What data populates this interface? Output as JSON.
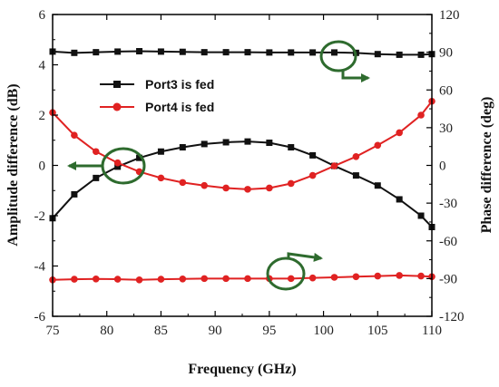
{
  "chart_data": {
    "type": "line",
    "xlabel": "Frequency (GHz)",
    "ylabel_left": "Amplitude difference (dB)",
    "ylabel_right": "Phase difference (deg)",
    "xlim": [
      75,
      110
    ],
    "ylim_left": [
      -6,
      6
    ],
    "ylim_right": [
      -120,
      120
    ],
    "x_ticks": [
      75,
      80,
      85,
      90,
      95,
      100,
      105,
      110
    ],
    "y_ticks_left": [
      -6,
      -4,
      -2,
      0,
      2,
      4,
      6
    ],
    "y_ticks_right": [
      -120,
      -90,
      -60,
      -30,
      0,
      30,
      60,
      90,
      120
    ],
    "grid": false,
    "legend_position": "upper-left",
    "colors": {
      "port3": "#111111",
      "port4": "#e02222",
      "annotation": "#2e6b2e"
    },
    "x": [
      75,
      77,
      79,
      81,
      83,
      85,
      87,
      89,
      91,
      93,
      95,
      97,
      99,
      101,
      103,
      105,
      107,
      109,
      110
    ],
    "series": [
      {
        "name": "Port3 is fed",
        "axis": "left",
        "marker": "square",
        "amplitude_values": [
          -2.1,
          -1.15,
          -0.5,
          -0.05,
          0.3,
          0.55,
          0.72,
          0.85,
          0.92,
          0.95,
          0.9,
          0.72,
          0.4,
          -0.02,
          -0.4,
          -0.8,
          -1.35,
          -2.0,
          -2.45
        ],
        "phase_values": [
          90.5,
          89.5,
          90,
          90.5,
          90.8,
          90.5,
          90.3,
          90,
          90,
          90,
          89.8,
          89.8,
          89.8,
          89.8,
          89.5,
          88.5,
          88,
          88,
          88.5
        ]
      },
      {
        "name": "Port4 is fed",
        "axis": "left",
        "marker": "circle",
        "amplitude_values": [
          2.1,
          1.2,
          0.55,
          0.1,
          -0.25,
          -0.5,
          -0.68,
          -0.8,
          -0.9,
          -0.95,
          -0.9,
          -0.72,
          -0.4,
          -0.02,
          0.35,
          0.8,
          1.3,
          2.0,
          2.55
        ],
        "phase_values": [
          -91,
          -90.5,
          -90.3,
          -90.5,
          -91,
          -90.5,
          -90.3,
          -90,
          -90,
          -90,
          -90,
          -90,
          -89.5,
          -89,
          -88.5,
          -88,
          -87.5,
          -88,
          -88.5
        ]
      }
    ]
  }
}
